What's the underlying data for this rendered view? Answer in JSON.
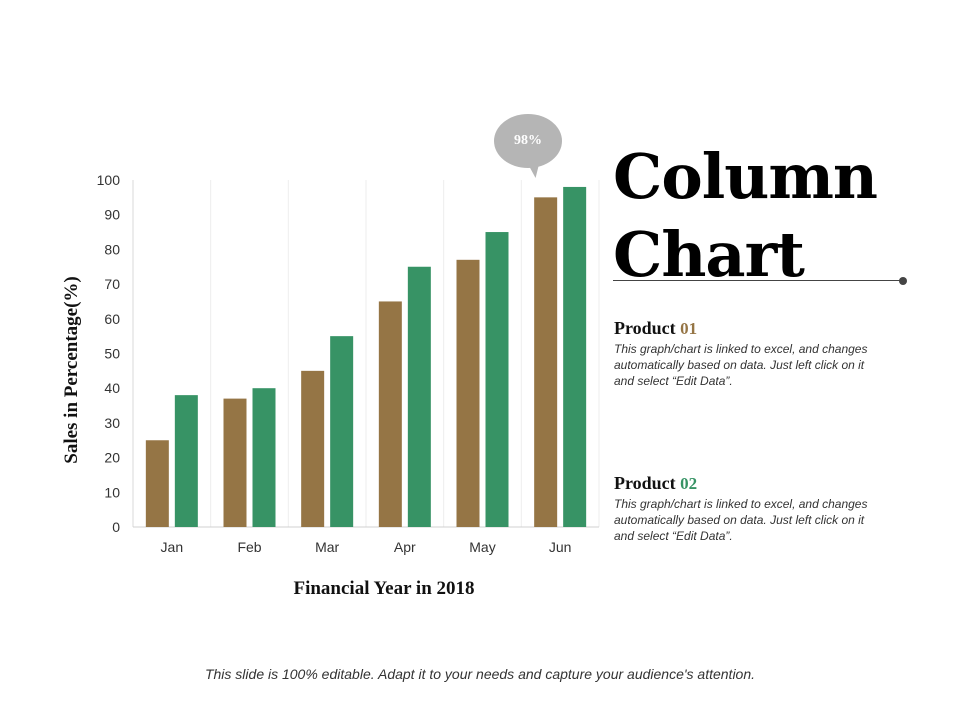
{
  "title": {
    "line1": "Column",
    "line2": "Chart"
  },
  "products": [
    {
      "label": "Product",
      "number": "01",
      "number_color": "#957545",
      "description": "This graph/chart is linked to excel, and changes automatically based on data. Just left click on it and select “Edit Data”."
    },
    {
      "label": "Product",
      "number": "02",
      "number_color": "#379365",
      "description": "This graph/chart is linked to excel, and changes automatically based on data. Just left click on it and select “Edit Data”."
    }
  ],
  "callout": "98%",
  "footer": "This slide is 100% editable. Adapt it to your needs and capture your audience's attention.",
  "chart_data": {
    "type": "bar",
    "categories": [
      "Jan",
      "Feb",
      "Mar",
      "Apr",
      "May",
      "Jun"
    ],
    "series": [
      {
        "values": [
          25,
          37,
          45,
          65,
          77,
          95
        ],
        "color": "#957545"
      },
      {
        "values": [
          38,
          40,
          55,
          75,
          85,
          98
        ],
        "color": "#379365"
      }
    ],
    "xlabel": "Financial Year in 2018",
    "ylabel": "Sales in Percentage(%)",
    "ylim": [
      0,
      100
    ],
    "yticks": [
      0,
      10,
      20,
      30,
      40,
      50,
      60,
      70,
      80,
      90,
      100
    ],
    "grid": "vertical category separators"
  }
}
